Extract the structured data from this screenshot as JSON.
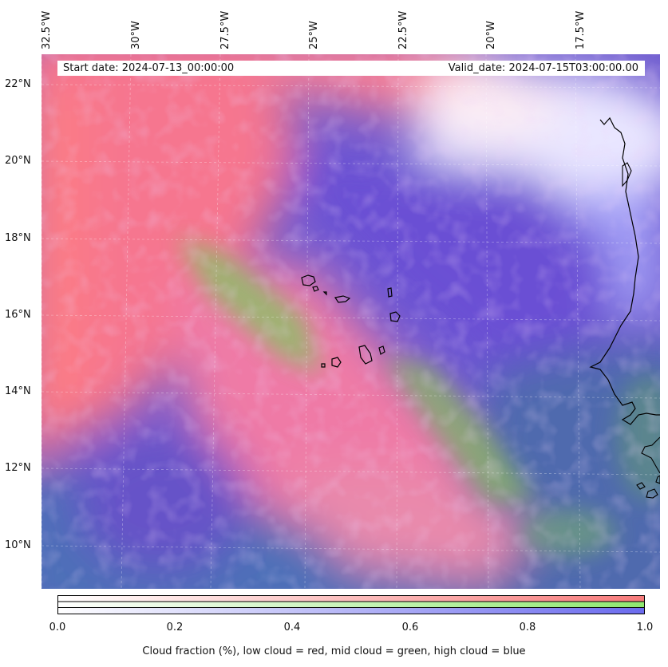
{
  "header": {
    "start_date": "Start date: 2024-07-13_00:00:00",
    "valid_date": "Valid_date: 2024-07-15T03:00:00.00"
  },
  "map": {
    "longitude_labels": [
      "32.5°W",
      "30°W",
      "27.5°W",
      "25°W",
      "22.5°W",
      "20°W",
      "17.5°W"
    ],
    "latitude_labels": [
      "22°N",
      "20°N",
      "18°N",
      "16°N",
      "14°N",
      "12°N",
      "10°N"
    ],
    "extent": {
      "lon_min": -32.5,
      "lon_max": -15.4,
      "lat_min": 8.9,
      "lat_max": 22.8
    },
    "layers": {
      "low_cloud": "#ff6b6b",
      "mid_cloud": "#7ed957",
      "high_cloud": "#5a5aff"
    }
  },
  "colorbar": {
    "ticks": [
      "0.0",
      "0.2",
      "0.4",
      "0.6",
      "0.8",
      "1.0"
    ],
    "bands": [
      {
        "name": "low",
        "color_end": "#f77b7b"
      },
      {
        "name": "mid",
        "color_end": "#8fe870"
      },
      {
        "name": "high",
        "color_end": "#6b6bee"
      }
    ],
    "label": "Cloud fraction (%), low cloud = red, mid cloud = green, high cloud = blue"
  }
}
